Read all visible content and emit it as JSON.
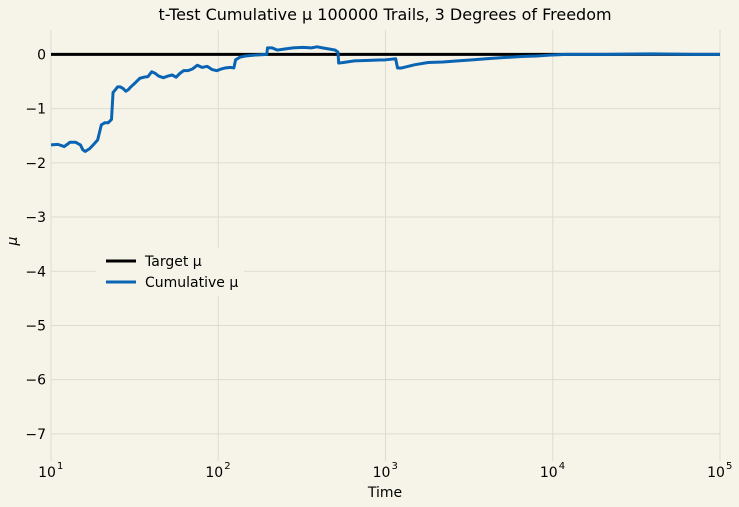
{
  "chart_data": {
    "type": "line",
    "title": "t-Test Cumulative μ 100000 Trails, 3 Degrees of Freedom",
    "xlabel": "Time",
    "ylabel": "μ",
    "x_scale": "log",
    "xlim": [
      10,
      100000
    ],
    "ylim": [
      -7.5,
      0.45
    ],
    "x_ticks": [
      {
        "value": 10,
        "base": "10",
        "exp": "1"
      },
      {
        "value": 100,
        "base": "10",
        "exp": "2"
      },
      {
        "value": 1000,
        "base": "10",
        "exp": "3"
      },
      {
        "value": 10000,
        "base": "10",
        "exp": "4"
      },
      {
        "value": 100000,
        "base": "10",
        "exp": "5"
      }
    ],
    "y_ticks": [
      {
        "value": 0,
        "label": "0"
      },
      {
        "value": -1,
        "label": "−1"
      },
      {
        "value": -2,
        "label": "−2"
      },
      {
        "value": -3,
        "label": "−3"
      },
      {
        "value": -4,
        "label": "−4"
      },
      {
        "value": -5,
        "label": "−5"
      },
      {
        "value": -6,
        "label": "−6"
      },
      {
        "value": -7,
        "label": "−7"
      }
    ],
    "grid": true,
    "legend_position": "center-left",
    "series": [
      {
        "name": "Target μ",
        "color": "#000000",
        "points": [
          [
            10,
            0
          ],
          [
            100000,
            0
          ]
        ]
      },
      {
        "name": "Cumulative μ",
        "color": "#0a64b4",
        "points": [
          [
            10,
            -1.67
          ],
          [
            11,
            -1.66
          ],
          [
            12,
            -1.7
          ],
          [
            12.5,
            -1.66
          ],
          [
            13,
            -1.62
          ],
          [
            14,
            -1.62
          ],
          [
            15,
            -1.67
          ],
          [
            15.5,
            -1.76
          ],
          [
            16,
            -1.79
          ],
          [
            17,
            -1.74
          ],
          [
            18,
            -1.66
          ],
          [
            19,
            -1.58
          ],
          [
            20,
            -1.3
          ],
          [
            21,
            -1.26
          ],
          [
            22,
            -1.26
          ],
          [
            23,
            -1.2
          ],
          [
            23.5,
            -0.7
          ],
          [
            24,
            -0.67
          ],
          [
            25,
            -0.6
          ],
          [
            26,
            -0.6
          ],
          [
            27,
            -0.63
          ],
          [
            28,
            -0.68
          ],
          [
            29,
            -0.65
          ],
          [
            30,
            -0.6
          ],
          [
            32,
            -0.52
          ],
          [
            34,
            -0.44
          ],
          [
            36,
            -0.42
          ],
          [
            38,
            -0.41
          ],
          [
            40,
            -0.32
          ],
          [
            42,
            -0.35
          ],
          [
            44,
            -0.4
          ],
          [
            47,
            -0.43
          ],
          [
            50,
            -0.4
          ],
          [
            53,
            -0.38
          ],
          [
            56,
            -0.42
          ],
          [
            59,
            -0.35
          ],
          [
            62,
            -0.3
          ],
          [
            66,
            -0.3
          ],
          [
            70,
            -0.27
          ],
          [
            75,
            -0.2
          ],
          [
            80,
            -0.24
          ],
          [
            86,
            -0.22
          ],
          [
            92,
            -0.28
          ],
          [
            98,
            -0.3
          ],
          [
            104,
            -0.27
          ],
          [
            110,
            -0.25
          ],
          [
            118,
            -0.24
          ],
          [
            124,
            -0.25
          ],
          [
            127,
            -0.1
          ],
          [
            135,
            -0.05
          ],
          [
            145,
            -0.03
          ],
          [
            155,
            -0.02
          ],
          [
            170,
            -0.01
          ],
          [
            195,
            0
          ],
          [
            197,
            0.12
          ],
          [
            210,
            0.12
          ],
          [
            225,
            0.08
          ],
          [
            250,
            0.1
          ],
          [
            280,
            0.12
          ],
          [
            320,
            0.13
          ],
          [
            360,
            0.12
          ],
          [
            390,
            0.14
          ],
          [
            420,
            0.12
          ],
          [
            460,
            0.1
          ],
          [
            500,
            0.08
          ],
          [
            520,
            0.04
          ],
          [
            525,
            -0.16
          ],
          [
            560,
            -0.15
          ],
          [
            650,
            -0.12
          ],
          [
            800,
            -0.11
          ],
          [
            1000,
            -0.1
          ],
          [
            1150,
            -0.08
          ],
          [
            1180,
            -0.25
          ],
          [
            1250,
            -0.25
          ],
          [
            1500,
            -0.19
          ],
          [
            1800,
            -0.15
          ],
          [
            2200,
            -0.14
          ],
          [
            2700,
            -0.12
          ],
          [
            3300,
            -0.1
          ],
          [
            4000,
            -0.08
          ],
          [
            5000,
            -0.06
          ],
          [
            6500,
            -0.04
          ],
          [
            8000,
            -0.03
          ],
          [
            10000,
            -0.01
          ],
          [
            12000,
            0
          ],
          [
            20000,
            0
          ],
          [
            40000,
            0.01
          ],
          [
            70000,
            0
          ],
          [
            100000,
            0
          ]
        ]
      }
    ]
  }
}
